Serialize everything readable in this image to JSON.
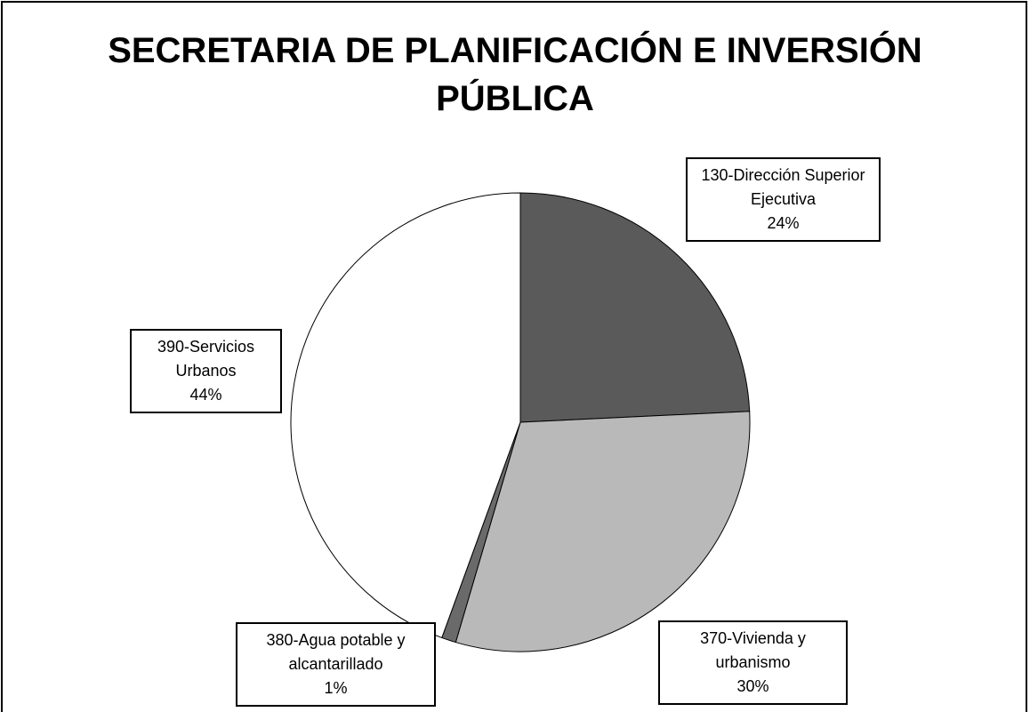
{
  "chart_data": {
    "type": "pie",
    "title": "SECRETARIA DE PLANIFICACIÓN E INVERSIÓN PÚBLICA",
    "categories": [
      "130-Dirección Superior Ejecutiva",
      "370-Vivienda y urbanismo",
      "380-Agua potable y alcantarillado",
      "390-Servicios Urbanos"
    ],
    "values": [
      24,
      30,
      1,
      44
    ],
    "value_labels": [
      "24%",
      "30%",
      "1%",
      "44%"
    ],
    "colors": [
      "#5a5a5a",
      "#b9b9b9",
      "#6a6a6a",
      "#ffffff"
    ]
  }
}
